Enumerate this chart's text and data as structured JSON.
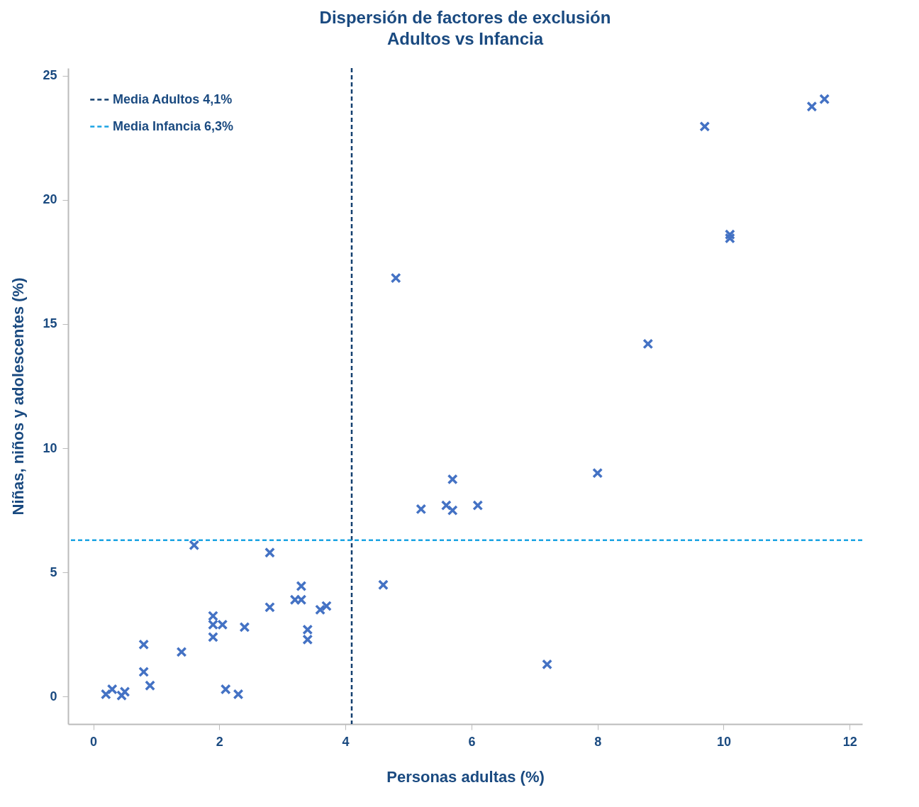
{
  "chart_data": {
    "type": "scatter",
    "title": "Dispersión de factores de exclusión",
    "subtitle": "Adultos vs Infancia",
    "xlabel": "Personas adultas (%)",
    "ylabel": "Niñas, niños y adolescentes (%)",
    "x": [
      0.2,
      0.3,
      0.45,
      0.5,
      0.8,
      0.8,
      0.9,
      1.4,
      1.6,
      1.9,
      1.9,
      1.9,
      2.05,
      2.1,
      2.3,
      2.4,
      2.8,
      2.8,
      3.2,
      3.3,
      3.3,
      3.4,
      3.4,
      3.6,
      3.7,
      4.6,
      4.8,
      5.2,
      5.6,
      5.7,
      5.7,
      6.1,
      7.2,
      8.0,
      8.8,
      9.7,
      10.1,
      10.1,
      11.4,
      11.6
    ],
    "series": [
      {
        "color": "#4472c4",
        "values": [
          0.1,
          0.3,
          0.05,
          0.2,
          2.1,
          1.0,
          0.45,
          1.8,
          6.1,
          3.25,
          2.9,
          2.4,
          2.9,
          0.3,
          0.1,
          2.8,
          5.8,
          3.6,
          3.9,
          3.9,
          4.45,
          2.7,
          2.3,
          3.5,
          3.65,
          4.5,
          16.85,
          7.55,
          7.7,
          8.75,
          7.5,
          7.7,
          1.3,
          9.0,
          14.2,
          22.95,
          18.6,
          18.45,
          23.75,
          24.05
        ]
      }
    ],
    "marker": "cross",
    "xlim": [
      -0.4,
      12.2
    ],
    "ylim": [
      -1.1,
      25.3
    ],
    "xticks": [
      0,
      2,
      4,
      6,
      8,
      10,
      12
    ],
    "yticks": [
      0,
      5,
      10,
      15,
      20,
      25
    ],
    "grid": false,
    "legend": "top left",
    "ref_lines": [
      {
        "axis": "x",
        "value": 4.1,
        "label": "Media Adultos 4,1%",
        "color": "#123e6e",
        "line_style": "dashed"
      },
      {
        "axis": "y",
        "value": 6.3,
        "label": "Media Infancia 6,3%",
        "color": "#1aa3e3",
        "line_style": "dashed"
      }
    ]
  }
}
